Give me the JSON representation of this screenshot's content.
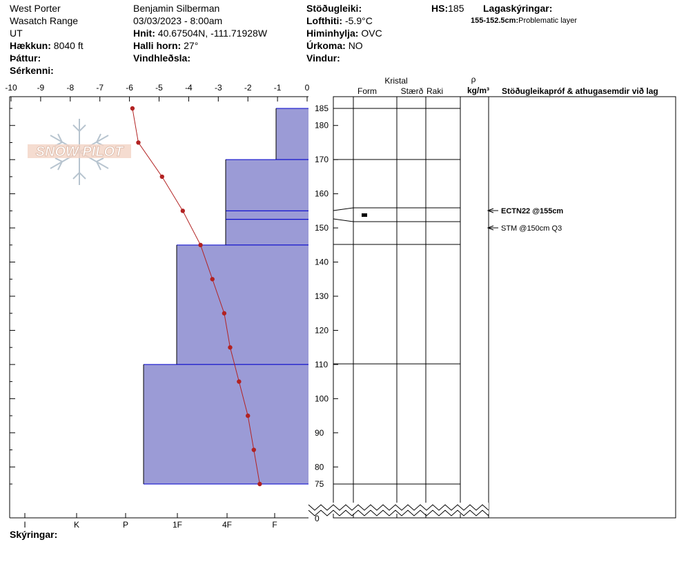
{
  "header": {
    "location": "West Porter",
    "range": "Wasatch Range",
    "state": "UT",
    "elevation_label": "Hækkun:",
    "elevation_value": "8040 ft",
    "aspect_label": "Þáttur:",
    "features_label": "Sérkenni:",
    "observer": "Benjamin Silberman",
    "datetime": "03/03/2023 - 8:00am",
    "coords_label": "Hnit:",
    "coords_value": "40.67504N, -111.71928W",
    "slope_label": "Halli horn:",
    "slope_value": "27°",
    "wind_loading_label": "Vindhleðsla:",
    "stability_label": "Stöðugleiki:",
    "air_temp_label": "Lofthiti:",
    "air_temp_value": "-5.9°C",
    "sky_label": "Himinhylja:",
    "sky_value": "OVC",
    "precip_label": "Úrkoma:",
    "precip_value": "NO",
    "wind_label": "Vindur:",
    "hs_label": "HS:",
    "hs_value": "185",
    "layer_notes_label": "Lagaskýringar:",
    "layer_note_range": "155-152.5cm:",
    "layer_note_text": "Problematic layer"
  },
  "footer": {
    "notes_label": "Skýringar:"
  },
  "logo_text": "SNOW PILOT",
  "columns": {
    "crystal": "Kristal",
    "form": "Form",
    "size": "Stærð",
    "moisture": "Raki",
    "rho": "ρ",
    "density_unit": "kg/m³",
    "tests": "Stöðugleikapróf & athugasemdir við lag"
  },
  "tests": [
    {
      "label": "ECTN22 @155cm",
      "depth": 155
    },
    {
      "label": "STM @150cm  Q3",
      "depth": 150
    }
  ],
  "colors": {
    "hardness_fill": "#9b9bd6",
    "hardness_line": "#0000cc",
    "temp": "#b22222"
  },
  "chart_data": {
    "type": "line",
    "temperature_axis": {
      "range": [
        -10,
        0
      ],
      "ticks": [
        "-10",
        "-9",
        "-8",
        "-7",
        "-6",
        "-5",
        "-4",
        "-3",
        "-2",
        "-1",
        "0"
      ]
    },
    "hardness_axis": {
      "labels": [
        "I",
        "K",
        "P",
        "1F",
        "4F",
        "F"
      ]
    },
    "height_axis": {
      "range": [
        0,
        185
      ],
      "ticks": [
        "185",
        "180",
        "170",
        "160",
        "150",
        "140",
        "130",
        "120",
        "110",
        "100",
        "90",
        "80",
        "75",
        "0"
      ]
    },
    "temperature_profile": {
      "height": [
        185,
        175,
        165,
        155,
        145,
        135,
        125,
        115,
        105,
        95,
        85,
        75
      ],
      "temp_c": [
        -5.9,
        -5.7,
        -4.9,
        -4.2,
        -3.6,
        -3.2,
        -2.8,
        -2.6,
        -2.3,
        -2.0,
        -1.8,
        -1.6
      ]
    },
    "layers": [
      {
        "top": 185,
        "bottom": 170,
        "hardness": "F"
      },
      {
        "top": 170,
        "bottom": 155,
        "hardness": "4F"
      },
      {
        "top": 155,
        "bottom": 152.5,
        "hardness": "4F"
      },
      {
        "top": 152.5,
        "bottom": 145,
        "hardness": "4F"
      },
      {
        "top": 145,
        "bottom": 110,
        "hardness": "1F"
      },
      {
        "top": 110,
        "bottom": 75,
        "hardness": "1F+"
      }
    ]
  }
}
